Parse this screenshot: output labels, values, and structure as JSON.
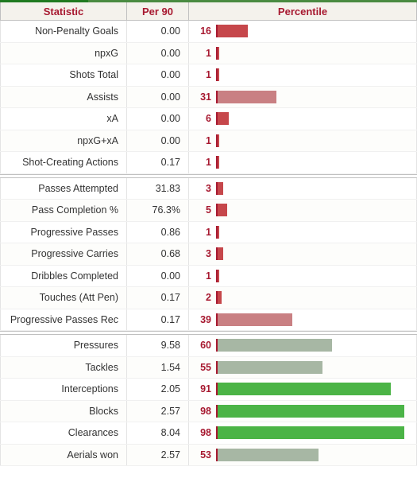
{
  "header": {
    "statistic": "Statistic",
    "per90": "Per 90",
    "percentile": "Percentile"
  },
  "bar": {
    "max_percentile": 100,
    "colors": {
      "very_low": "#c6474b",
      "low": "#c98083",
      "mid": "#a7b7a4",
      "high": "#7fa87a",
      "very_high": "#4bb446"
    },
    "tick_color": "#a71930"
  },
  "sections": [
    {
      "rows": [
        {
          "stat": "Non-Penalty Goals",
          "per90": "0.00",
          "pct": 16
        },
        {
          "stat": "npxG",
          "per90": "0.00",
          "pct": 1
        },
        {
          "stat": "Shots Total",
          "per90": "0.00",
          "pct": 1
        },
        {
          "stat": "Assists",
          "per90": "0.00",
          "pct": 31
        },
        {
          "stat": "xA",
          "per90": "0.00",
          "pct": 6
        },
        {
          "stat": "npxG+xA",
          "per90": "0.00",
          "pct": 1
        },
        {
          "stat": "Shot-Creating Actions",
          "per90": "0.17",
          "pct": 1
        }
      ]
    },
    {
      "rows": [
        {
          "stat": "Passes Attempted",
          "per90": "31.83",
          "pct": 3
        },
        {
          "stat": "Pass Completion %",
          "per90": "76.3%",
          "pct": 5
        },
        {
          "stat": "Progressive Passes",
          "per90": "0.86",
          "pct": 1
        },
        {
          "stat": "Progressive Carries",
          "per90": "0.68",
          "pct": 3
        },
        {
          "stat": "Dribbles Completed",
          "per90": "0.00",
          "pct": 1
        },
        {
          "stat": "Touches (Att Pen)",
          "per90": "0.17",
          "pct": 2
        },
        {
          "stat": "Progressive Passes Rec",
          "per90": "0.17",
          "pct": 39
        }
      ]
    },
    {
      "rows": [
        {
          "stat": "Pressures",
          "per90": "9.58",
          "pct": 60
        },
        {
          "stat": "Tackles",
          "per90": "1.54",
          "pct": 55
        },
        {
          "stat": "Interceptions",
          "per90": "2.05",
          "pct": 91
        },
        {
          "stat": "Blocks",
          "per90": "2.57",
          "pct": 98
        },
        {
          "stat": "Clearances",
          "per90": "8.04",
          "pct": 98
        },
        {
          "stat": "Aerials won",
          "per90": "2.57",
          "pct": 53
        }
      ]
    }
  ]
}
